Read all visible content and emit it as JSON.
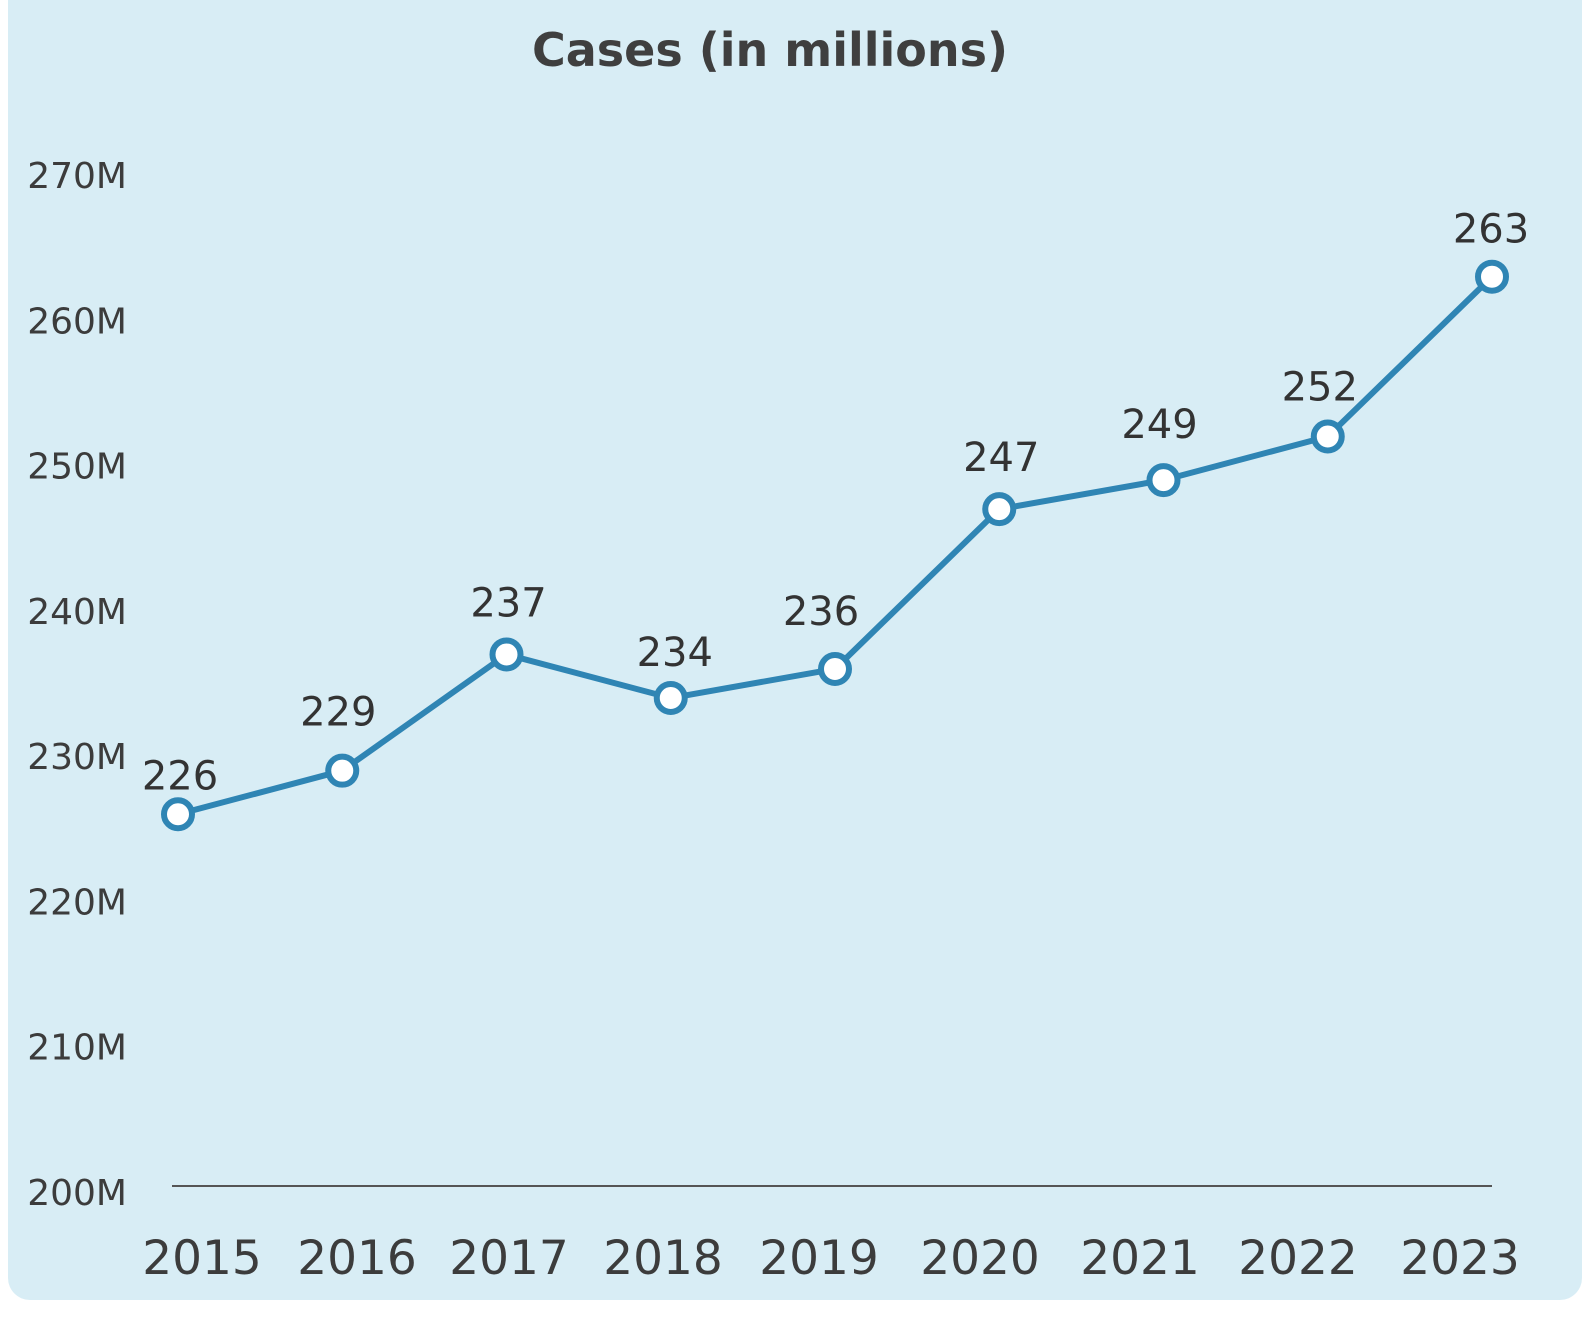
{
  "chart_data": {
    "type": "line",
    "title": "Cases (in millions)",
    "xlabel": "",
    "ylabel": "",
    "categories": [
      "2015",
      "2016",
      "2017",
      "2018",
      "2019",
      "2020",
      "2021",
      "2022",
      "2023"
    ],
    "series": [
      {
        "name": "Cases",
        "values": [
          226,
          229,
          237,
          234,
          236,
          247,
          249,
          252,
          263
        ],
        "data_labels": [
          "226",
          "229",
          "237",
          "234",
          "236",
          "247",
          "249",
          "252",
          "263"
        ]
      }
    ],
    "ylim": [
      200,
      270
    ],
    "yticks": [
      200,
      210,
      220,
      230,
      240,
      250,
      260,
      270
    ],
    "ytick_labels": [
      "200M",
      "210M",
      "220M",
      "230M",
      "240M",
      "250M",
      "260M",
      "270M"
    ],
    "grid": false,
    "legend": "none"
  },
  "colors": {
    "background": "#d8edf5",
    "line": "#2f85b4",
    "marker_fill": "#ffffff",
    "baseline": "#555555"
  }
}
